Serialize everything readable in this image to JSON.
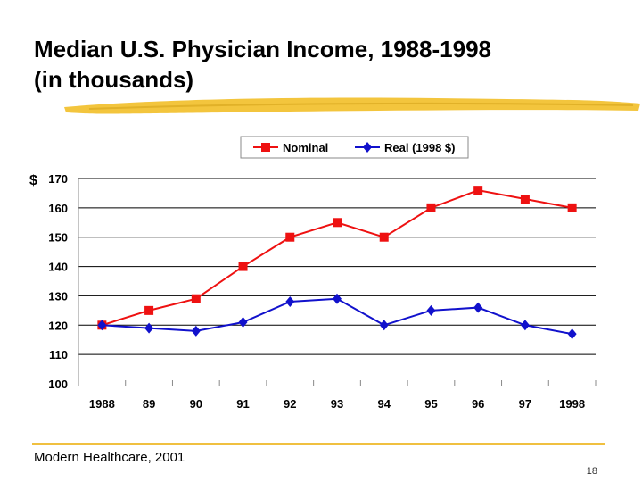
{
  "slide": {
    "title_line1": "Median U.S. Physician Income, 1988-1998",
    "title_line2": "(in thousands)",
    "source": "Modern Healthcare, 2001",
    "page_number": "18",
    "accent_color": "#f0c040"
  },
  "chart_data": {
    "type": "line",
    "currency_symbol": "$",
    "categories": [
      "1988",
      "89",
      "90",
      "91",
      "92",
      "93",
      "94",
      "95",
      "96",
      "97",
      "1998"
    ],
    "y_ticks": [
      "100",
      "110",
      "120",
      "130",
      "140",
      "150",
      "160",
      "170"
    ],
    "ylim": [
      100,
      170
    ],
    "grid": true,
    "legend_position": "top",
    "series": [
      {
        "name": "Nominal",
        "color": "#ee1111",
        "marker": "square",
        "values": [
          120,
          125,
          129,
          140,
          150,
          155,
          150,
          160,
          166,
          163,
          160
        ]
      },
      {
        "name": "Real (1998 $)",
        "color": "#1111cc",
        "marker": "diamond",
        "values": [
          120,
          119,
          118,
          121,
          128,
          129,
          120,
          125,
          126,
          120,
          117
        ]
      }
    ]
  }
}
